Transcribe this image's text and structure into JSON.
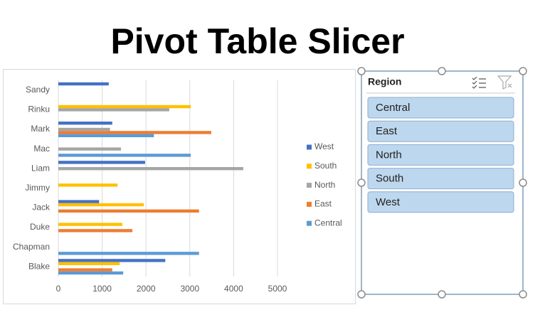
{
  "page_title": "Pivot Table Slicer",
  "chart_data": {
    "type": "hbar",
    "categories": [
      "Sandy",
      "Rinku",
      "Mark",
      "Mac",
      "Liam",
      "Jimmy",
      "Jack",
      "Duke",
      "Chapman",
      "Blake"
    ],
    "series": [
      {
        "name": "West",
        "color": "#4472c4",
        "values": [
          1150,
          null,
          1230,
          null,
          1980,
          null,
          930,
          null,
          null,
          2440
        ]
      },
      {
        "name": "South",
        "color": "#ffc000",
        "values": [
          null,
          3020,
          null,
          null,
          null,
          1350,
          1950,
          1460,
          null,
          1400
        ]
      },
      {
        "name": "North",
        "color": "#a5a5a5",
        "values": [
          null,
          2530,
          1180,
          1430,
          4220,
          null,
          null,
          null,
          null,
          null
        ]
      },
      {
        "name": "East",
        "color": "#ed7d31",
        "values": [
          null,
          null,
          3490,
          null,
          null,
          null,
          3210,
          1690,
          null,
          1230
        ]
      },
      {
        "name": "Central",
        "color": "#5b9bd5",
        "values": [
          null,
          null,
          2180,
          3020,
          null,
          null,
          null,
          null,
          3210,
          1480
        ]
      }
    ],
    "xlim": [
      0,
      5000
    ],
    "xticks": [
      0,
      1000,
      2000,
      3000,
      4000,
      5000
    ],
    "grid": true,
    "legend": "right"
  },
  "slicer": {
    "header": "Region",
    "items": [
      "Central",
      "East",
      "North",
      "South",
      "West"
    ]
  }
}
